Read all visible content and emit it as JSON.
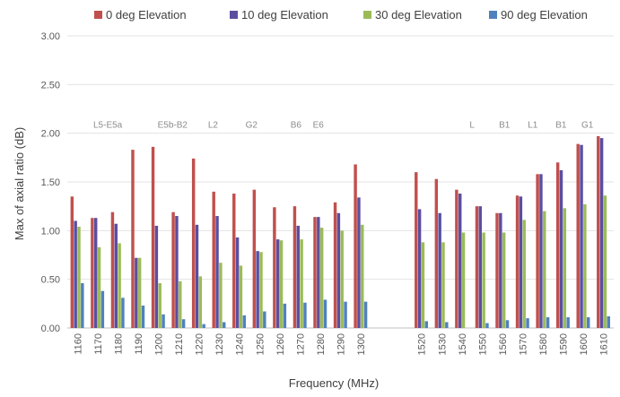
{
  "chart_data": {
    "type": "bar",
    "title": "",
    "xlabel": "Frequency (MHz)",
    "ylabel": "Max of axial ratio (dB)",
    "ylim": [
      0,
      3.0
    ],
    "yticks": [
      "0.00",
      "0.50",
      "1.00",
      "1.50",
      "2.00",
      "2.50",
      "3.00"
    ],
    "grid": true,
    "legend_position": "top",
    "categories": [
      "1160",
      "1170",
      "1180",
      "1190",
      "1200",
      "1210",
      "1220",
      "1230",
      "1240",
      "1250",
      "1260",
      "1270",
      "1280",
      "1290",
      "1300",
      "",
      "",
      "1520",
      "1530",
      "1540",
      "1550",
      "1560",
      "1570",
      "1580",
      "1590",
      "1600",
      "1610"
    ],
    "series": [
      {
        "name": "0 deg Elevation",
        "color": "#c0504d",
        "values": [
          1.35,
          1.13,
          1.19,
          1.83,
          1.86,
          1.19,
          1.74,
          1.4,
          1.38,
          1.42,
          1.24,
          1.25,
          1.14,
          1.29,
          1.68,
          null,
          null,
          1.6,
          1.53,
          1.42,
          1.25,
          1.18,
          1.36,
          1.58,
          1.7,
          1.89,
          1.97
        ]
      },
      {
        "name": "10 deg Elevation",
        "color": "#5b4ea0",
        "values": [
          1.1,
          1.13,
          1.07,
          0.72,
          1.05,
          1.15,
          1.06,
          1.15,
          0.93,
          0.79,
          0.91,
          1.05,
          1.14,
          1.18,
          1.34,
          null,
          null,
          1.22,
          1.18,
          1.38,
          1.25,
          1.18,
          1.35,
          1.58,
          1.62,
          1.88,
          1.95
        ]
      },
      {
        "name": "30 deg Elevation",
        "color": "#9bbb59",
        "values": [
          1.04,
          0.83,
          0.87,
          0.72,
          0.46,
          0.48,
          0.53,
          0.67,
          0.64,
          0.78,
          0.9,
          0.91,
          1.03,
          1.0,
          1.06,
          null,
          null,
          0.88,
          0.88,
          0.98,
          0.98,
          0.98,
          1.11,
          1.2,
          1.23,
          1.27,
          1.36
        ]
      },
      {
        "name": "90 deg Elevation",
        "color": "#4f81bd",
        "values": [
          0.46,
          0.38,
          0.31,
          0.23,
          0.14,
          0.09,
          0.04,
          0.06,
          0.13,
          0.17,
          0.25,
          0.26,
          0.29,
          0.27,
          0.27,
          null,
          null,
          0.07,
          0.06,
          0.0,
          0.05,
          0.08,
          0.1,
          0.11,
          0.11,
          0.11,
          0.12
        ]
      }
    ],
    "annotations": [
      {
        "text": "L5-E5a",
        "category": "1175"
      },
      {
        "text": "E5b-B2",
        "category": "1207"
      },
      {
        "text": "L2",
        "category": "1227"
      },
      {
        "text": "G2",
        "category": "1246"
      },
      {
        "text": "B6",
        "category": "1268"
      },
      {
        "text": "E6",
        "category": "1279"
      },
      {
        "text": "L",
        "category": "1545"
      },
      {
        "text": "B1",
        "category": "1561"
      },
      {
        "text": "L1",
        "category": "1575"
      },
      {
        "text": "B1",
        "category": "1589"
      },
      {
        "text": "G1",
        "category": "1602"
      }
    ]
  }
}
